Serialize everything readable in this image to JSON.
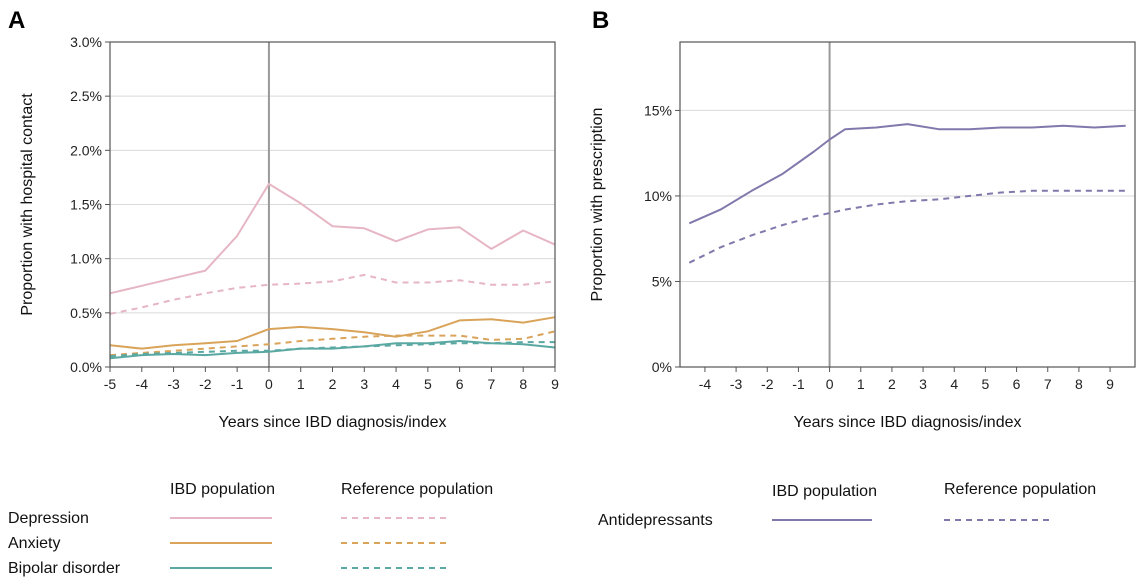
{
  "colors": {
    "depression": "#e6b6c4",
    "anxiety": "#d9a45a",
    "bipolar": "#5aa8a2",
    "antidepressants": "#8278ac",
    "grid": "#d9d9d9",
    "frame": "#555555",
    "index_line": "#999999"
  },
  "chart_data": [
    {
      "panel": "A",
      "type": "line",
      "xlabel": "Years since IBD diagnosis/index",
      "ylabel": "Proportion with hospital contact",
      "x": [
        -5,
        -4,
        -3,
        -2,
        -1,
        0,
        1,
        2,
        3,
        4,
        5,
        6,
        7,
        8,
        9
      ],
      "xticks": [
        "-5",
        "-4",
        "-3",
        "-2",
        "-1",
        "0",
        "1",
        "2",
        "3",
        "4",
        "5",
        "6",
        "7",
        "8",
        "9"
      ],
      "xlim": [
        -5,
        9
      ],
      "ylim": [
        0,
        3.0
      ],
      "yticks": [
        0,
        0.5,
        1.0,
        1.5,
        2.0,
        2.5,
        3.0
      ],
      "ytick_labels": [
        "0.0%",
        "0.5%",
        "1.0%",
        "1.5%",
        "2.0%",
        "2.5%",
        "3.0%"
      ],
      "grid": "horizontal",
      "series": [
        {
          "name": "Depression",
          "population": "IBD population",
          "style": "solid",
          "color_key": "depression",
          "values": [
            0.68,
            0.75,
            0.82,
            0.89,
            1.21,
            1.69,
            1.51,
            1.3,
            1.28,
            1.16,
            1.27,
            1.29,
            1.09,
            1.26,
            1.13
          ]
        },
        {
          "name": "Depression",
          "population": "Reference population",
          "style": "dashed",
          "color_key": "depression",
          "values": [
            0.49,
            0.55,
            0.62,
            0.68,
            0.73,
            0.76,
            0.77,
            0.79,
            0.85,
            0.78,
            0.78,
            0.8,
            0.76,
            0.76,
            0.79
          ]
        },
        {
          "name": "Anxiety",
          "population": "IBD population",
          "style": "solid",
          "color_key": "anxiety",
          "values": [
            0.2,
            0.17,
            0.2,
            0.22,
            0.24,
            0.35,
            0.37,
            0.35,
            0.32,
            0.28,
            0.33,
            0.43,
            0.44,
            0.41,
            0.46
          ]
        },
        {
          "name": "Anxiety",
          "population": "Reference population",
          "style": "dashed",
          "color_key": "anxiety",
          "values": [
            0.11,
            0.13,
            0.15,
            0.17,
            0.19,
            0.21,
            0.24,
            0.26,
            0.28,
            0.29,
            0.29,
            0.29,
            0.25,
            0.26,
            0.33
          ]
        },
        {
          "name": "Bipolar disorder",
          "population": "IBD population",
          "style": "solid",
          "color_key": "bipolar",
          "values": [
            0.08,
            0.11,
            0.12,
            0.11,
            0.13,
            0.14,
            0.17,
            0.17,
            0.19,
            0.22,
            0.22,
            0.24,
            0.22,
            0.21,
            0.18
          ]
        },
        {
          "name": "Bipolar disorder",
          "population": "Reference population",
          "style": "dashed",
          "color_key": "bipolar",
          "values": [
            0.1,
            0.12,
            0.13,
            0.14,
            0.15,
            0.15,
            0.17,
            0.18,
            0.19,
            0.2,
            0.21,
            0.22,
            0.22,
            0.23,
            0.23
          ]
        }
      ]
    },
    {
      "panel": "B",
      "type": "line",
      "xlabel": "Years since IBD diagnosis/index",
      "ylabel": "Proportion with prescription",
      "x": [
        -4.5,
        -3.5,
        -2.5,
        -1.5,
        -0.5,
        0,
        0.5,
        1.5,
        2.5,
        3.5,
        4.5,
        5.5,
        6.5,
        7.5,
        8.5,
        9.5
      ],
      "xticks": [
        "-4",
        "-3",
        "-2",
        "-1",
        "0",
        "1",
        "2",
        "3",
        "4",
        "5",
        "6",
        "7",
        "8",
        "9"
      ],
      "xtick_values": [
        -4,
        -3,
        -2,
        -1,
        0,
        1,
        2,
        3,
        4,
        5,
        6,
        7,
        8,
        9
      ],
      "xlim": [
        -4.8,
        9.8
      ],
      "ylim": [
        0,
        19
      ],
      "yticks": [
        0,
        5,
        10,
        15
      ],
      "ytick_labels": [
        "0%",
        "5%",
        "10%",
        "15%"
      ],
      "grid": "horizontal",
      "series": [
        {
          "name": "Antidepressants",
          "population": "IBD population",
          "style": "solid",
          "color_key": "antidepressants",
          "values": [
            8.4,
            9.2,
            10.3,
            11.3,
            12.6,
            13.3,
            13.9,
            14.0,
            14.2,
            13.9,
            13.9,
            14.0,
            14.0,
            14.1,
            14.0,
            14.1
          ]
        },
        {
          "name": "Antidepressants",
          "population": "Reference population",
          "style": "dashed",
          "color_key": "antidepressants",
          "values": [
            6.1,
            7.0,
            7.7,
            8.3,
            8.8,
            9.0,
            9.2,
            9.5,
            9.7,
            9.8,
            10.0,
            10.2,
            10.3,
            10.3,
            10.3,
            10.3
          ]
        }
      ]
    }
  ],
  "panel_a": {
    "letter": "A",
    "legend": {
      "col1_header": "IBD population",
      "col2_header": "Reference population",
      "rows": [
        {
          "label": "Depression",
          "color_key": "depression"
        },
        {
          "label": "Anxiety",
          "color_key": "anxiety"
        },
        {
          "label": "Bipolar disorder",
          "color_key": "bipolar"
        }
      ]
    }
  },
  "panel_b": {
    "letter": "B",
    "legend": {
      "col1_header": "IBD population",
      "col2_header": "Reference population",
      "rows": [
        {
          "label": "Antidepressants",
          "color_key": "antidepressants"
        }
      ]
    }
  }
}
